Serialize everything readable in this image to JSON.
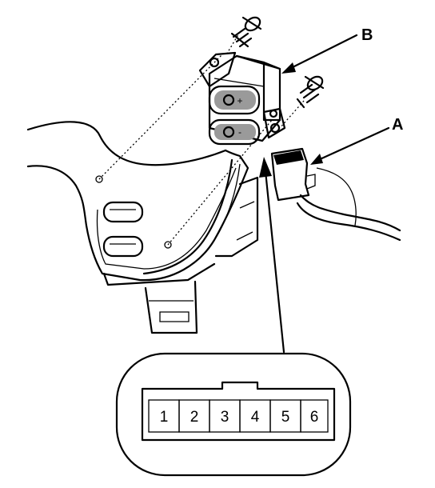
{
  "callouts": {
    "a": "A",
    "b": "B"
  },
  "switch_symbols": {
    "plus": "+",
    "minus": "-"
  },
  "connector_pins": [
    "1",
    "2",
    "3",
    "4",
    "5",
    "6"
  ]
}
